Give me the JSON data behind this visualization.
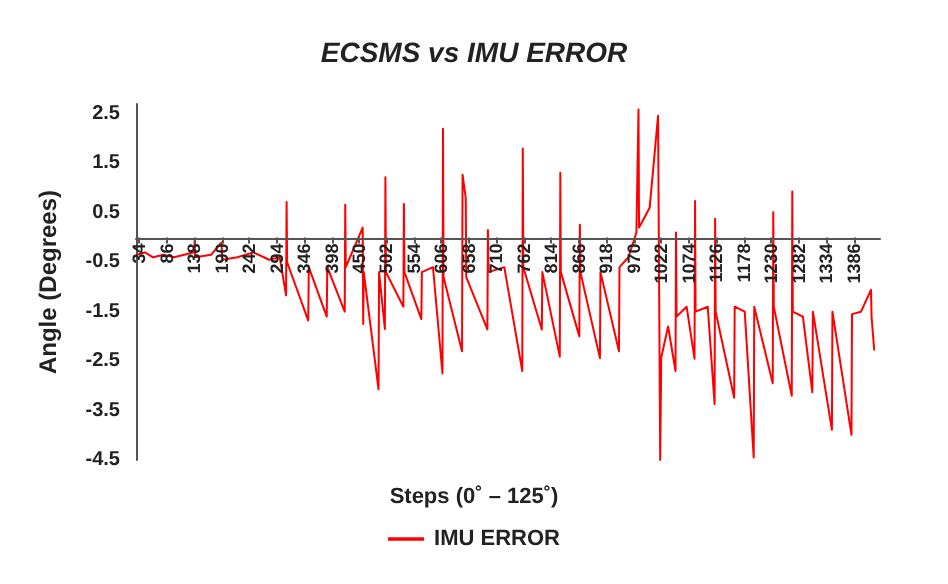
{
  "chart_data": {
    "type": "line",
    "title": "ECSMS vs IMU ERROR",
    "xlabel": "Steps (0˚ – 125˚)",
    "ylabel": "Angle (Degrees)",
    "x": [
      30,
      45,
      60,
      80,
      100,
      138,
      139,
      140,
      170,
      190,
      191,
      220,
      250,
      280,
      300,
      312,
      313,
      314,
      354,
      355,
      389,
      390,
      423,
      424,
      425,
      457,
      458,
      459,
      487,
      488,
      499,
      500,
      501,
      534,
      535,
      536,
      568,
      569,
      590,
      608,
      609,
      610,
      645,
      646,
      652,
      653,
      693,
      694,
      695,
      725,
      759,
      760,
      761,
      796,
      797,
      830,
      831,
      832,
      867,
      868,
      869,
      906,
      907,
      942,
      943,
      960,
      975,
      979,
      980,
      990,
      1000,
      1016,
      1020,
      1022,
      1035,
      1049,
      1050,
      1051,
      1070,
      1085,
      1086,
      1087,
      1110,
      1123,
      1124,
      1125,
      1160,
      1161,
      1180,
      1197,
      1198,
      1233,
      1234,
      1235,
      1269,
      1270,
      1271,
      1290,
      1308,
      1309,
      1345,
      1346,
      1382,
      1383,
      1400,
      1419,
      1420,
      1425
    ],
    "series": [
      {
        "name": "IMU ERROR",
        "color": "#ff0000",
        "values": [
          -0.35,
          -0.3,
          -0.4,
          -0.35,
          -0.4,
          -0.3,
          -0.05,
          -0.4,
          -0.35,
          -0.1,
          -0.45,
          -0.4,
          -0.3,
          -0.45,
          -0.4,
          -1.17,
          0.72,
          -0.5,
          -1.68,
          -0.6,
          -1.6,
          -0.6,
          -1.5,
          0.66,
          -0.6,
          0.2,
          -1.75,
          -0.7,
          -3.07,
          -0.7,
          -1.85,
          1.22,
          -0.7,
          -1.4,
          0.68,
          -0.7,
          -1.65,
          -0.7,
          -0.6,
          -2.75,
          2.2,
          -0.8,
          -2.3,
          1.27,
          0.8,
          -0.8,
          -1.86,
          0.15,
          -0.7,
          -0.6,
          -2.7,
          1.8,
          -0.6,
          -1.86,
          -0.7,
          -2.41,
          1.31,
          -0.7,
          -2.0,
          0.26,
          -0.7,
          -2.44,
          -0.7,
          -2.3,
          -0.6,
          -0.4,
          0.1,
          2.59,
          0.2,
          0.4,
          0.6,
          2.46,
          -4.5,
          -2.43,
          -1.8,
          -2.7,
          0.1,
          -1.6,
          -1.4,
          -2.45,
          0.74,
          -1.5,
          -1.4,
          -3.37,
          0.38,
          -1.5,
          -3.24,
          -1.4,
          -1.5,
          -4.45,
          -1.4,
          -2.95,
          0.51,
          -1.4,
          -3.2,
          0.93,
          -1.5,
          -1.6,
          -3.13,
          -1.5,
          -3.89,
          -1.5,
          -3.99,
          -1.55,
          -1.5,
          -1.06,
          -1.6,
          -2.27
        ]
      }
    ],
    "xlim": [
      28,
      1436
    ],
    "xticks": [
      34,
      86,
      138,
      190,
      242,
      294,
      346,
      398,
      450,
      502,
      554,
      606,
      658,
      710,
      762,
      814,
      866,
      918,
      970,
      1022,
      1074,
      1126,
      1178,
      1230,
      1282,
      1334,
      1386
    ],
    "ylim": [
      -4.5,
      2.7
    ],
    "yticks": [
      -4.5,
      -3.5,
      -2.5,
      -1.5,
      -0.5,
      0.5,
      1.5,
      2.5
    ],
    "grid": false,
    "legend": "bottom",
    "marker": "none",
    "line_style": "solid"
  }
}
